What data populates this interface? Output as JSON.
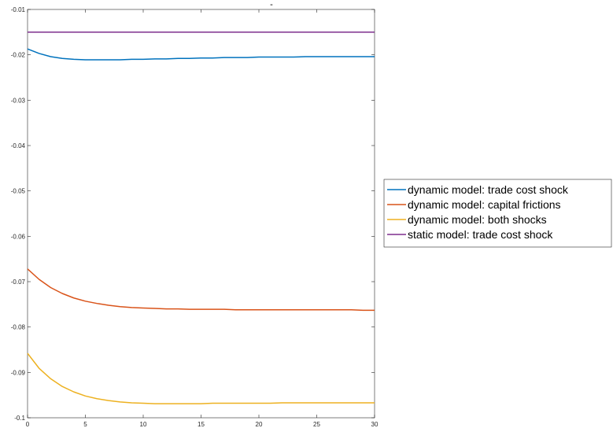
{
  "chart_data": {
    "type": "line",
    "title": "-",
    "xlabel": "",
    "ylabel": "",
    "xlim": [
      0,
      30
    ],
    "ylim": [
      -0.1,
      -0.01
    ],
    "xticks": [
      0,
      5,
      10,
      15,
      20,
      25,
      30
    ],
    "xtick_labels": [
      "0",
      "5",
      "10",
      "15",
      "20",
      "25",
      "30"
    ],
    "yticks": [
      -0.01,
      -0.02,
      -0.03,
      -0.04,
      -0.05,
      -0.06,
      -0.07,
      -0.08,
      -0.09,
      -0.1
    ],
    "ytick_labels": [
      "-0.01",
      "-0.02",
      "-0.03",
      "-0.04",
      "-0.05",
      "-0.06",
      "-0.07",
      "-0.08",
      "-0.09",
      "-0.1"
    ],
    "grid": false,
    "legend_position": "outside-right",
    "x": [
      0,
      1,
      2,
      3,
      4,
      5,
      6,
      7,
      8,
      9,
      10,
      11,
      12,
      13,
      14,
      15,
      16,
      17,
      18,
      19,
      20,
      21,
      22,
      23,
      24,
      25,
      26,
      27,
      28,
      29,
      30
    ],
    "series": [
      {
        "name": "dynamic model: trade cost shock",
        "color": "#0072BD",
        "values": [
          -0.0187,
          -0.0197,
          -0.0204,
          -0.0208,
          -0.021,
          -0.0211,
          -0.0211,
          -0.0211,
          -0.0211,
          -0.021,
          -0.021,
          -0.0209,
          -0.0209,
          -0.0208,
          -0.0208,
          -0.0207,
          -0.0207,
          -0.0206,
          -0.0206,
          -0.0206,
          -0.0205,
          -0.0205,
          -0.0205,
          -0.0205,
          -0.0204,
          -0.0204,
          -0.0204,
          -0.0204,
          -0.0204,
          -0.0204,
          -0.0204
        ]
      },
      {
        "name": "dynamic model: capital frictions",
        "color": "#D95319",
        "values": [
          -0.0672,
          -0.0695,
          -0.0713,
          -0.0726,
          -0.0736,
          -0.0743,
          -0.0748,
          -0.0752,
          -0.0755,
          -0.0757,
          -0.0758,
          -0.0759,
          -0.076,
          -0.076,
          -0.0761,
          -0.0761,
          -0.0761,
          -0.0761,
          -0.0762,
          -0.0762,
          -0.0762,
          -0.0762,
          -0.0762,
          -0.0762,
          -0.0762,
          -0.0762,
          -0.0762,
          -0.0762,
          -0.0762,
          -0.0763,
          -0.0763
        ]
      },
      {
        "name": "dynamic model: both shocks",
        "color": "#EDB120",
        "values": [
          -0.0858,
          -0.0891,
          -0.0914,
          -0.0931,
          -0.0943,
          -0.0952,
          -0.0958,
          -0.0962,
          -0.0965,
          -0.0967,
          -0.0968,
          -0.0969,
          -0.0969,
          -0.0969,
          -0.0969,
          -0.0969,
          -0.0968,
          -0.0968,
          -0.0968,
          -0.0968,
          -0.0968,
          -0.0968,
          -0.0967,
          -0.0967,
          -0.0967,
          -0.0967,
          -0.0967,
          -0.0967,
          -0.0967,
          -0.0967,
          -0.0967
        ]
      },
      {
        "name": "static model: trade cost shock",
        "color": "#7E2F8E",
        "values": [
          -0.015,
          -0.015,
          -0.015,
          -0.015,
          -0.015,
          -0.015,
          -0.015,
          -0.015,
          -0.015,
          -0.015,
          -0.015,
          -0.015,
          -0.015,
          -0.015,
          -0.015,
          -0.015,
          -0.015,
          -0.015,
          -0.015,
          -0.015,
          -0.015,
          -0.015,
          -0.015,
          -0.015,
          -0.015,
          -0.015,
          -0.015,
          -0.015,
          -0.015,
          -0.015,
          -0.015
        ]
      }
    ]
  }
}
